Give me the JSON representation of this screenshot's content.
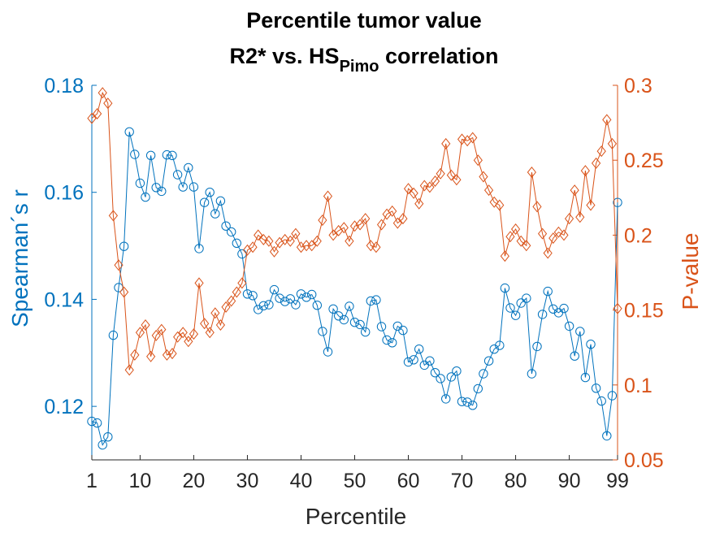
{
  "chart_data": {
    "type": "line",
    "title": "Percentile tumor value",
    "subtitle": {
      "prefix": "R2* vs. HS",
      "subscript": "Pimo",
      "suffix": " correlation"
    },
    "xlabel": "Percentile",
    "ylabel_left": "Spearman´s r",
    "ylabel_right": "P-value",
    "xlim": [
      1,
      99
    ],
    "ylim_left": [
      0.11,
      0.18
    ],
    "ylim_right": [
      0.05,
      0.3
    ],
    "xticks": [
      1,
      10,
      20,
      30,
      40,
      50,
      60,
      70,
      80,
      90,
      99
    ],
    "yticks_left": [
      0.12,
      0.14,
      0.16,
      0.18
    ],
    "yticks_right": [
      0.05,
      0.1,
      0.15,
      0.2,
      0.25,
      0.3
    ],
    "ytick_labels_left": [
      "0.12",
      "0.14",
      "0.16",
      "0.18"
    ],
    "ytick_labels_right": [
      "0.05",
      "0.1",
      "0.15",
      "0.2",
      "0.25",
      "0.3"
    ],
    "grid": false,
    "legend": "none",
    "colors": {
      "left": "#0072BD",
      "right": "#D95319"
    },
    "series": [
      {
        "axis": "left",
        "marker": "circle",
        "x": [
          1,
          2,
          3,
          4,
          5,
          6,
          7,
          8,
          9,
          10,
          11,
          12,
          13,
          14,
          15,
          16,
          17,
          18,
          19,
          20,
          21,
          22,
          23,
          24,
          25,
          26,
          27,
          28,
          29,
          30,
          31,
          32,
          33,
          34,
          35,
          36,
          37,
          38,
          39,
          40,
          41,
          42,
          43,
          44,
          45,
          46,
          47,
          48,
          49,
          50,
          51,
          52,
          53,
          54,
          55,
          56,
          57,
          58,
          59,
          60,
          61,
          62,
          63,
          64,
          65,
          66,
          67,
          68,
          69,
          70,
          71,
          72,
          73,
          74,
          75,
          76,
          77,
          78,
          79,
          80,
          81,
          82,
          83,
          84,
          85,
          86,
          87,
          88,
          89,
          90,
          91,
          92,
          93,
          94,
          95,
          96,
          97,
          98,
          99
        ],
        "values": [
          0.1172,
          0.1169,
          0.1128,
          0.1143,
          0.1333,
          0.1422,
          0.1499,
          0.1713,
          0.1671,
          0.1617,
          0.1591,
          0.1669,
          0.1609,
          0.1602,
          0.167,
          0.1669,
          0.1633,
          0.161,
          0.1646,
          0.161,
          0.1495,
          0.1581,
          0.16,
          0.156,
          0.1584,
          0.1537,
          0.1526,
          0.1505,
          0.1485,
          0.141,
          0.1407,
          0.1381,
          0.1388,
          0.139,
          0.1418,
          0.1402,
          0.1396,
          0.1401,
          0.139,
          0.141,
          0.1404,
          0.1409,
          0.1389,
          0.134,
          0.1302,
          0.1382,
          0.1369,
          0.1362,
          0.1387,
          0.1357,
          0.1353,
          0.1339,
          0.1397,
          0.1399,
          0.1349,
          0.1324,
          0.1319,
          0.135,
          0.1342,
          0.1283,
          0.1287,
          0.1307,
          0.1277,
          0.1285,
          0.1263,
          0.1252,
          0.1214,
          0.1255,
          0.1266,
          0.1209,
          0.1208,
          0.1202,
          0.1233,
          0.1261,
          0.1285,
          0.1307,
          0.1314,
          0.1421,
          0.1384,
          0.137,
          0.1393,
          0.1402,
          0.1261,
          0.1312,
          0.1372,
          0.1415,
          0.1382,
          0.1375,
          0.1383,
          0.135,
          0.1294,
          0.134,
          0.1254,
          0.1316,
          0.1234,
          0.121,
          0.1145,
          0.122,
          0.1581
        ]
      },
      {
        "axis": "right",
        "marker": "diamond",
        "x": [
          1,
          2,
          3,
          4,
          5,
          6,
          7,
          8,
          9,
          10,
          11,
          12,
          13,
          14,
          15,
          16,
          17,
          18,
          19,
          20,
          21,
          22,
          23,
          24,
          25,
          26,
          27,
          28,
          29,
          30,
          31,
          32,
          33,
          34,
          35,
          36,
          37,
          38,
          39,
          40,
          41,
          42,
          43,
          44,
          45,
          46,
          47,
          48,
          49,
          50,
          51,
          52,
          53,
          54,
          55,
          56,
          57,
          58,
          59,
          60,
          61,
          62,
          63,
          64,
          65,
          66,
          67,
          68,
          69,
          70,
          71,
          72,
          73,
          74,
          75,
          76,
          77,
          78,
          79,
          80,
          81,
          82,
          83,
          84,
          85,
          86,
          87,
          88,
          89,
          90,
          91,
          92,
          93,
          94,
          95,
          96,
          97,
          98,
          99
        ],
        "values": [
          0.278,
          0.281,
          0.295,
          0.288,
          0.213,
          0.18,
          0.162,
          0.11,
          0.12,
          0.135,
          0.14,
          0.119,
          0.133,
          0.137,
          0.12,
          0.121,
          0.132,
          0.135,
          0.129,
          0.134,
          0.168,
          0.141,
          0.135,
          0.148,
          0.14,
          0.152,
          0.156,
          0.162,
          0.168,
          0.19,
          0.192,
          0.2,
          0.197,
          0.196,
          0.189,
          0.195,
          0.197,
          0.196,
          0.201,
          0.192,
          0.193,
          0.193,
          0.196,
          0.21,
          0.226,
          0.2,
          0.203,
          0.205,
          0.196,
          0.206,
          0.207,
          0.211,
          0.193,
          0.192,
          0.207,
          0.214,
          0.216,
          0.208,
          0.211,
          0.231,
          0.228,
          0.221,
          0.233,
          0.232,
          0.236,
          0.241,
          0.261,
          0.24,
          0.237,
          0.264,
          0.263,
          0.265,
          0.25,
          0.239,
          0.23,
          0.222,
          0.22,
          0.186,
          0.199,
          0.204,
          0.196,
          0.193,
          0.242,
          0.219,
          0.201,
          0.188,
          0.198,
          0.202,
          0.2,
          0.211,
          0.23,
          0.212,
          0.243,
          0.22,
          0.248,
          0.256,
          0.277,
          0.261,
          0.151
        ]
      }
    ]
  }
}
